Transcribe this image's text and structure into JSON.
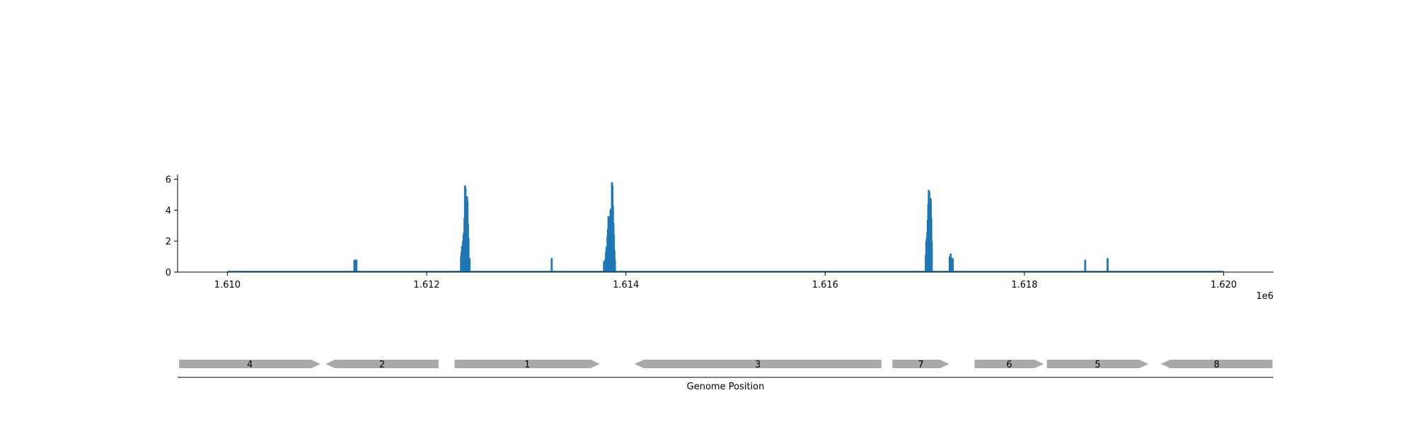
{
  "colors": {
    "coverage": "#1f77b4",
    "gene": "#a9a9a9",
    "axis": "#000000"
  },
  "chart_data": [
    {
      "type": "bar",
      "title": "",
      "xlabel": "",
      "ylabel": "",
      "x_offset_label": "1e6",
      "xlim": [
        1609500,
        1620500
      ],
      "ylim": [
        0,
        6.3
      ],
      "x_ticks": [
        {
          "value": 1610000,
          "label": "1.610"
        },
        {
          "value": 1612000,
          "label": "1.612"
        },
        {
          "value": 1614000,
          "label": "1.614"
        },
        {
          "value": 1616000,
          "label": "1.616"
        },
        {
          "value": 1618000,
          "label": "1.618"
        },
        {
          "value": 1620000,
          "label": "1.620"
        }
      ],
      "y_ticks": [
        {
          "value": 0,
          "label": "0"
        },
        {
          "value": 2,
          "label": "2"
        },
        {
          "value": 4,
          "label": "4"
        },
        {
          "value": 6,
          "label": "6"
        }
      ],
      "baseline": {
        "x_start": 1610000,
        "x_end": 1620000,
        "value": 0
      },
      "grid": false,
      "spines": [
        "left",
        "bottom"
      ],
      "peaks": [
        {
          "x": [
            1611275,
            1611285,
            1611295
          ],
          "values": [
            0.8,
            0.8,
            0.8
          ]
        },
        {
          "x": [
            1612345,
            1612350,
            1612355,
            1612360,
            1612365,
            1612370,
            1612375,
            1612380,
            1612385,
            1612390,
            1612395,
            1612400,
            1612405,
            1612410,
            1612415,
            1612420,
            1612430
          ],
          "values": [
            1.0,
            1.3,
            1.7,
            1.7,
            2.0,
            2.4,
            2.6,
            3.5,
            5.6,
            5.4,
            4.8,
            4.2,
            4.9,
            4.6,
            3.1,
            2.2,
            0.9
          ]
        },
        {
          "x": [
            1613255
          ],
          "values": [
            0.9
          ]
        },
        {
          "x": [
            1613780,
            1613790,
            1613800,
            1613805,
            1613810,
            1613815,
            1613820,
            1613825,
            1613830,
            1613835,
            1613840,
            1613845,
            1613850,
            1613855,
            1613860,
            1613865,
            1613870,
            1613875,
            1613880,
            1613885,
            1613890
          ],
          "values": [
            0.7,
            0.8,
            1.3,
            1.6,
            1.7,
            2.3,
            2.8,
            3.6,
            3.5,
            3.1,
            3.6,
            4.0,
            4.1,
            3.7,
            5.8,
            5.6,
            4.3,
            3.2,
            2.4,
            1.4,
            0.8
          ]
        },
        {
          "x": [
            1617010,
            1617015,
            1617020,
            1617025,
            1617030,
            1617035,
            1617040,
            1617045,
            1617050,
            1617055,
            1617060,
            1617065,
            1617070
          ],
          "values": [
            1.1,
            2.0,
            2.2,
            2.6,
            3.4,
            4.4,
            5.3,
            5.2,
            4.5,
            4.8,
            4.7,
            3.5,
            2.0
          ]
        },
        {
          "x": [
            1617250,
            1617260,
            1617270,
            1617280
          ],
          "values": [
            1.0,
            1.2,
            0.9,
            0.9
          ]
        },
        {
          "x": [
            1618610
          ],
          "values": [
            0.8
          ]
        },
        {
          "x": [
            1618835
          ],
          "values": [
            0.9
          ]
        }
      ]
    },
    {
      "type": "gene-map",
      "xlabel": "Genome Position",
      "genes": [
        {
          "label": "4",
          "start": 1609515,
          "end": 1610935,
          "strand": "+"
        },
        {
          "label": "2",
          "start": 1610985,
          "end": 1612120,
          "strand": "-"
        },
        {
          "label": "1",
          "start": 1612280,
          "end": 1613740,
          "strand": "+"
        },
        {
          "label": "3",
          "start": 1614085,
          "end": 1616565,
          "strand": "-"
        },
        {
          "label": "7",
          "start": 1616675,
          "end": 1617245,
          "strand": "+"
        },
        {
          "label": "6",
          "start": 1617500,
          "end": 1618195,
          "strand": "+"
        },
        {
          "label": "5",
          "start": 1618225,
          "end": 1619245,
          "strand": "+"
        },
        {
          "label": "8",
          "start": 1619370,
          "end": 1620490,
          "strand": "-"
        }
      ]
    }
  ]
}
